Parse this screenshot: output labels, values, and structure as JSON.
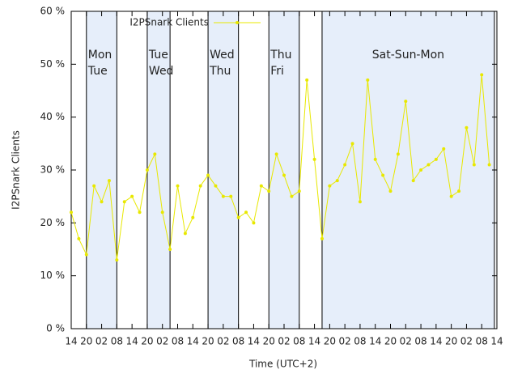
{
  "chart_data": {
    "type": "line",
    "xlabel": "Time (UTC+2)",
    "ylabel": "I2PSnark Clients",
    "x": [
      0,
      3,
      6,
      9,
      12,
      15,
      18,
      21,
      24,
      27,
      30,
      33,
      36,
      39,
      42,
      45,
      48,
      51,
      54,
      57,
      60,
      63,
      66,
      69,
      72,
      75,
      78,
      81,
      84,
      87,
      90,
      93,
      96,
      99,
      102,
      105,
      108,
      111,
      114,
      117,
      120,
      123,
      126,
      129,
      132,
      135,
      138,
      141,
      144,
      147,
      150,
      153,
      156,
      159,
      162,
      165
    ],
    "series": [
      {
        "name": "I2PSnark Clients",
        "color": "#e8e800",
        "values": [
          22,
          17,
          14,
          27,
          24,
          28,
          13,
          24,
          25,
          22,
          30,
          33,
          22,
          15,
          27,
          18,
          21,
          27,
          29,
          27,
          25,
          25,
          21,
          22,
          20,
          27,
          26,
          33,
          29,
          25,
          26,
          47,
          32,
          17,
          27,
          28,
          31,
          35,
          24,
          47,
          32,
          29,
          26,
          33,
          43,
          28,
          30,
          31,
          32,
          34,
          25,
          26,
          38,
          31,
          48,
          31
        ]
      }
    ],
    "xlim": [
      0,
      168
    ],
    "xticks": [
      {
        "value": 0,
        "label": "14"
      },
      {
        "value": 6,
        "label": "20"
      },
      {
        "value": 12,
        "label": "02"
      },
      {
        "value": 18,
        "label": "08"
      },
      {
        "value": 24,
        "label": "14"
      },
      {
        "value": 30,
        "label": "20"
      },
      {
        "value": 36,
        "label": "02"
      },
      {
        "value": 42,
        "label": "08"
      },
      {
        "value": 48,
        "label": "14"
      },
      {
        "value": 54,
        "label": "20"
      },
      {
        "value": 60,
        "label": "02"
      },
      {
        "value": 66,
        "label": "08"
      },
      {
        "value": 72,
        "label": "14"
      },
      {
        "value": 78,
        "label": "20"
      },
      {
        "value": 84,
        "label": "02"
      },
      {
        "value": 90,
        "label": "08"
      },
      {
        "value": 96,
        "label": "14"
      },
      {
        "value": 102,
        "label": "20"
      },
      {
        "value": 108,
        "label": "02"
      },
      {
        "value": 114,
        "label": "08"
      },
      {
        "value": 120,
        "label": "14"
      },
      {
        "value": 126,
        "label": "20"
      },
      {
        "value": 132,
        "label": "02"
      },
      {
        "value": 138,
        "label": "08"
      },
      {
        "value": 144,
        "label": "14"
      },
      {
        "value": 150,
        "label": "20"
      },
      {
        "value": 156,
        "label": "02"
      },
      {
        "value": 162,
        "label": "08"
      },
      {
        "value": 168,
        "label": "14"
      }
    ],
    "ylim": [
      0,
      60
    ],
    "yticks": [
      {
        "value": 0,
        "label": "0 %"
      },
      {
        "value": 10,
        "label": "10 %"
      },
      {
        "value": 20,
        "label": "20 %"
      },
      {
        "value": 30,
        "label": "30 %"
      },
      {
        "value": 40,
        "label": "40 %"
      },
      {
        "value": 50,
        "label": "50 %"
      },
      {
        "value": 60,
        "label": "60 %"
      }
    ],
    "regions": [
      {
        "label": [
          "Mon",
          "Tue"
        ],
        "start": 6,
        "end": 18
      },
      {
        "label": [
          "Tue",
          "Wed"
        ],
        "start": 30,
        "end": 39
      },
      {
        "label": [
          "Wed",
          "Thu"
        ],
        "start": 54,
        "end": 66
      },
      {
        "label": [
          "Thu",
          "Fri"
        ],
        "start": 78,
        "end": 90
      },
      {
        "label": [
          "Sat-Sun-Mon"
        ],
        "start": 99,
        "end": 167
      }
    ],
    "region_color": "#e6eefa",
    "legend": "top"
  }
}
